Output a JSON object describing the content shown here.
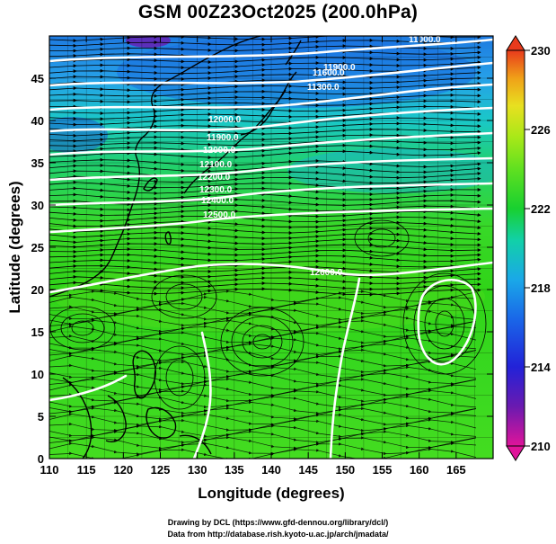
{
  "title": "GSM 00Z23Oct2025 (200.0hPa)",
  "axes": {
    "xlabel": "Longitude (degrees)",
    "ylabel": "Latitude  (degrees)",
    "x_ticks": [
      "110",
      "115",
      "120",
      "125",
      "130",
      "135",
      "140",
      "145",
      "150",
      "155",
      "160",
      "165"
    ],
    "y_ticks": [
      "0",
      "5",
      "10",
      "15",
      "20",
      "25",
      "30",
      "35",
      "40",
      "45"
    ]
  },
  "colorbar": {
    "ticks": [
      "230",
      "226",
      "222",
      "218",
      "214",
      "210"
    ],
    "min": 210,
    "max": 230,
    "colors": [
      "#e0149a",
      "#6a1ab0",
      "#2222d8",
      "#1a66e8",
      "#1aa8e8",
      "#12d0a8",
      "#18d030",
      "#60e020",
      "#a8e818",
      "#e8e020",
      "#f0a018",
      "#e83a1c"
    ]
  },
  "contour_labels": [
    "11000.0",
    "11900.0",
    "11600.0",
    "11300.0",
    "12000.0",
    "11900.0",
    "12000.0",
    "12100.0",
    "12200.0",
    "12300.0",
    "12400.0",
    "12500.0",
    "12600.0"
  ],
  "footer": {
    "line1": "Drawing by DCL (https://www.gfd-dennou.org/library/dcl/)",
    "line2": "Data from http://database.rish.kyoto-u.ac.jp/arch/jmadata/"
  }
}
